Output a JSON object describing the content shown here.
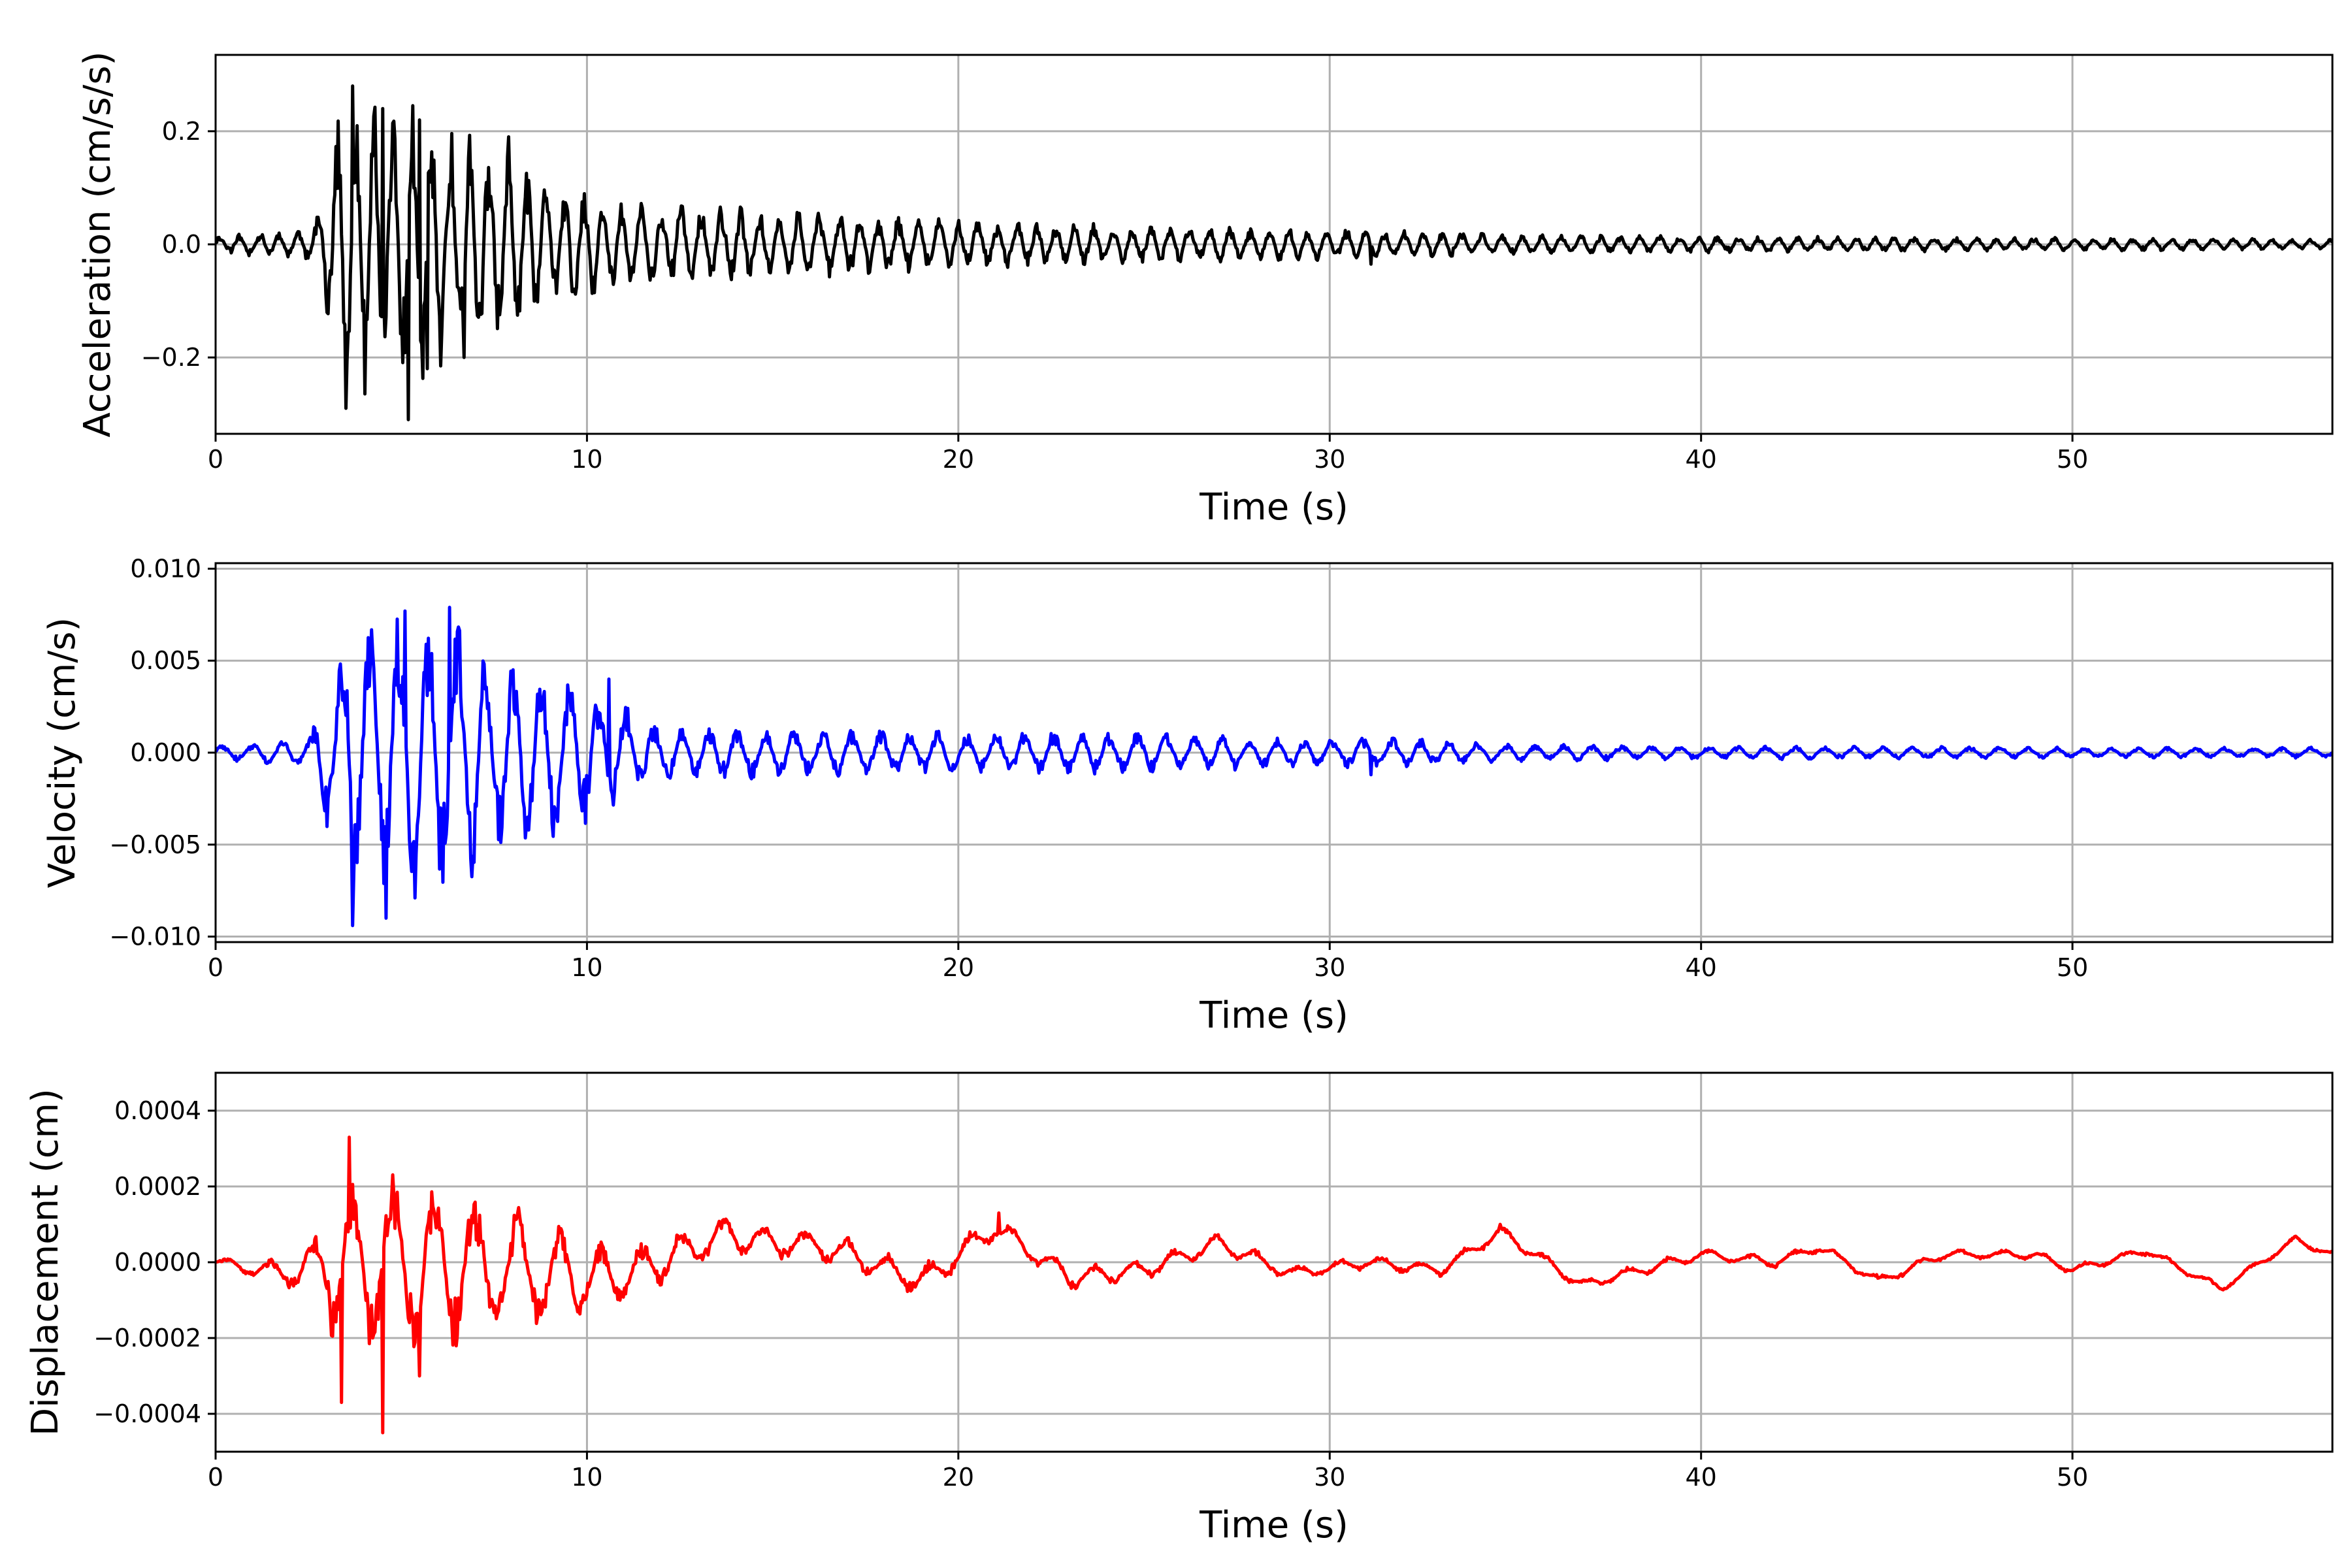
{
  "chart_data": [
    {
      "type": "line",
      "series": [
        {
          "color": "#000000",
          "envelope": [
            [
              0,
              0.015
            ],
            [
              2.6,
              0.03
            ],
            [
              3.3,
              0.24
            ],
            [
              3.7,
              0.28
            ],
            [
              4.5,
              0.25
            ],
            [
              5.2,
              0.27
            ],
            [
              6.5,
              0.22
            ],
            [
              8,
              0.16
            ],
            [
              9.5,
              0.11
            ],
            [
              11,
              0.08
            ],
            [
              14,
              0.07
            ],
            [
              16,
              0.06
            ],
            [
              20,
              0.045
            ],
            [
              25,
              0.035
            ],
            [
              28,
              0.03
            ],
            [
              31,
              0.028
            ],
            [
              35,
              0.018
            ],
            [
              40,
              0.015
            ],
            [
              50,
              0.012
            ],
            [
              57,
              0.01
            ]
          ],
          "peaks": [
            [
              3.5,
              -0.29
            ],
            [
              3.7,
              0.28
            ],
            [
              4.5,
              0.24
            ],
            [
              5.2,
              -0.31
            ],
            [
              5.5,
              0.22
            ],
            [
              5.7,
              -0.22
            ],
            [
              6.7,
              -0.2
            ],
            [
              7.9,
              0.19
            ],
            [
              31.1,
              -0.035
            ]
          ]
        }
      ],
      "xlabel": "Time (s)",
      "ylabel": "Acceleration (cm/s/s)",
      "xlim": [
        0,
        57
      ],
      "ylim": [
        -0.335,
        0.335
      ],
      "xticks": [
        0,
        10,
        20,
        30,
        40,
        50
      ],
      "xtick_labels": [
        "0",
        "10",
        "20",
        "30",
        "40",
        "50"
      ],
      "yticks": [
        -0.2,
        0.0,
        0.2
      ],
      "ytick_labels": [
        "−0.2",
        "0.0",
        "0.2"
      ],
      "grid": true,
      "seed": 11,
      "freq": 1.9
    },
    {
      "type": "line",
      "series": [
        {
          "color": "#0000ff",
          "envelope": [
            [
              0,
              0.0004
            ],
            [
              2.5,
              0.0008
            ],
            [
              3.2,
              0.006
            ],
            [
              3.6,
              0.009
            ],
            [
              4.5,
              0.008
            ],
            [
              5.5,
              0.0085
            ],
            [
              6.5,
              0.0078
            ],
            [
              7.5,
              0.006
            ],
            [
              9,
              0.005
            ],
            [
              10.5,
              0.0035
            ],
            [
              12,
              0.0015
            ],
            [
              16,
              0.0014
            ],
            [
              20,
              0.0012
            ],
            [
              24,
              0.0012
            ],
            [
              27,
              0.001
            ],
            [
              30,
              0.0008
            ],
            [
              31,
              0.0009
            ],
            [
              35,
              0.0005
            ],
            [
              40,
              0.0004
            ],
            [
              50,
              0.0003
            ],
            [
              57,
              0.0003
            ]
          ],
          "peaks": [
            [
              3.7,
              -0.0094
            ],
            [
              4.6,
              -0.009
            ],
            [
              6.3,
              0.0079
            ],
            [
              5.1,
              0.0077
            ],
            [
              10.6,
              0.004
            ],
            [
              31.1,
              -0.0012
            ]
          ]
        }
      ],
      "xlabel": "Time (s)",
      "ylabel": "Velocity (cm/s)",
      "xlim": [
        0,
        57
      ],
      "ylim": [
        -0.0103,
        0.0103
      ],
      "xticks": [
        0,
        10,
        20,
        30,
        40,
        50
      ],
      "xtick_labels": [
        "0",
        "10",
        "20",
        "30",
        "40",
        "50"
      ],
      "yticks": [
        -0.01,
        -0.005,
        0.0,
        0.005,
        0.01
      ],
      "ytick_labels": [
        "−0.010",
        "−0.005",
        "0.000",
        "0.005",
        "0.010"
      ],
      "grid": true,
      "seed": 23,
      "freq": 1.3
    },
    {
      "type": "line",
      "series": [
        {
          "color": "#ff0000",
          "envelope": [
            [
              0,
              1e-05
            ],
            [
              2,
              4e-05
            ],
            [
              2.8,
              0.0001
            ],
            [
              3.3,
              0.00025
            ],
            [
              4,
              0.00025
            ],
            [
              5,
              0.00024
            ],
            [
              6.5,
              0.00022
            ],
            [
              8,
              0.00018
            ],
            [
              9.5,
              0.00012
            ],
            [
              11,
              8e-05
            ],
            [
              14,
              5e-05
            ],
            [
              20,
              4e-05
            ],
            [
              25,
              3e-05
            ],
            [
              30,
              2e-05
            ],
            [
              57,
              1e-05
            ]
          ],
          "baseline": [
            [
              0,
              0
            ],
            [
              2,
              -3e-05
            ],
            [
              3,
              0
            ],
            [
              11,
              -4e-05
            ],
            [
              13.5,
              7e-05
            ],
            [
              16.5,
              4e-05
            ],
            [
              19,
              -5e-05
            ],
            [
              21,
              9e-05
            ],
            [
              23,
              -4e-05
            ],
            [
              25,
              -2e-05
            ],
            [
              27,
              5e-05
            ],
            [
              29,
              -3e-05
            ],
            [
              31,
              0
            ],
            [
              33,
              -2e-05
            ],
            [
              34.6,
              8e-05
            ],
            [
              36.8,
              -6e-05
            ],
            [
              40,
              2e-05
            ],
            [
              42,
              0
            ],
            [
              43.2,
              4e-05
            ],
            [
              44.8,
              -5e-05
            ],
            [
              46.5,
              2e-05
            ],
            [
              49,
              2e-05
            ],
            [
              50,
              -2e-05
            ],
            [
              52,
              3e-05
            ],
            [
              54,
              -7e-05
            ],
            [
              56,
              6e-05
            ],
            [
              57,
              2e-05
            ]
          ],
          "peaks": [
            [
              3.6,
              0.00033
            ],
            [
              4.5,
              -0.00045
            ],
            [
              3.4,
              -0.00037
            ],
            [
              5.5,
              -0.0003
            ],
            [
              21.1,
              0.00013
            ],
            [
              34.6,
              0.0001
            ],
            [
              54,
              -7e-05
            ]
          ]
        }
      ],
      "xlabel": "Time (s)",
      "ylabel": "Displacement (cm)",
      "xlim": [
        0,
        57
      ],
      "ylim": [
        -0.0005,
        0.0005
      ],
      "xticks": [
        0,
        10,
        20,
        30,
        40,
        50
      ],
      "xtick_labels": [
        "0",
        "10",
        "20",
        "30",
        "40",
        "50"
      ],
      "yticks": [
        -0.0004,
        -0.0002,
        0.0,
        0.0002,
        0.0004
      ],
      "ytick_labels": [
        "−0.0004",
        "−0.0002",
        "0.0000",
        "0.0002",
        "0.0004"
      ],
      "grid": true,
      "seed": 37,
      "freq": 0.9
    }
  ]
}
